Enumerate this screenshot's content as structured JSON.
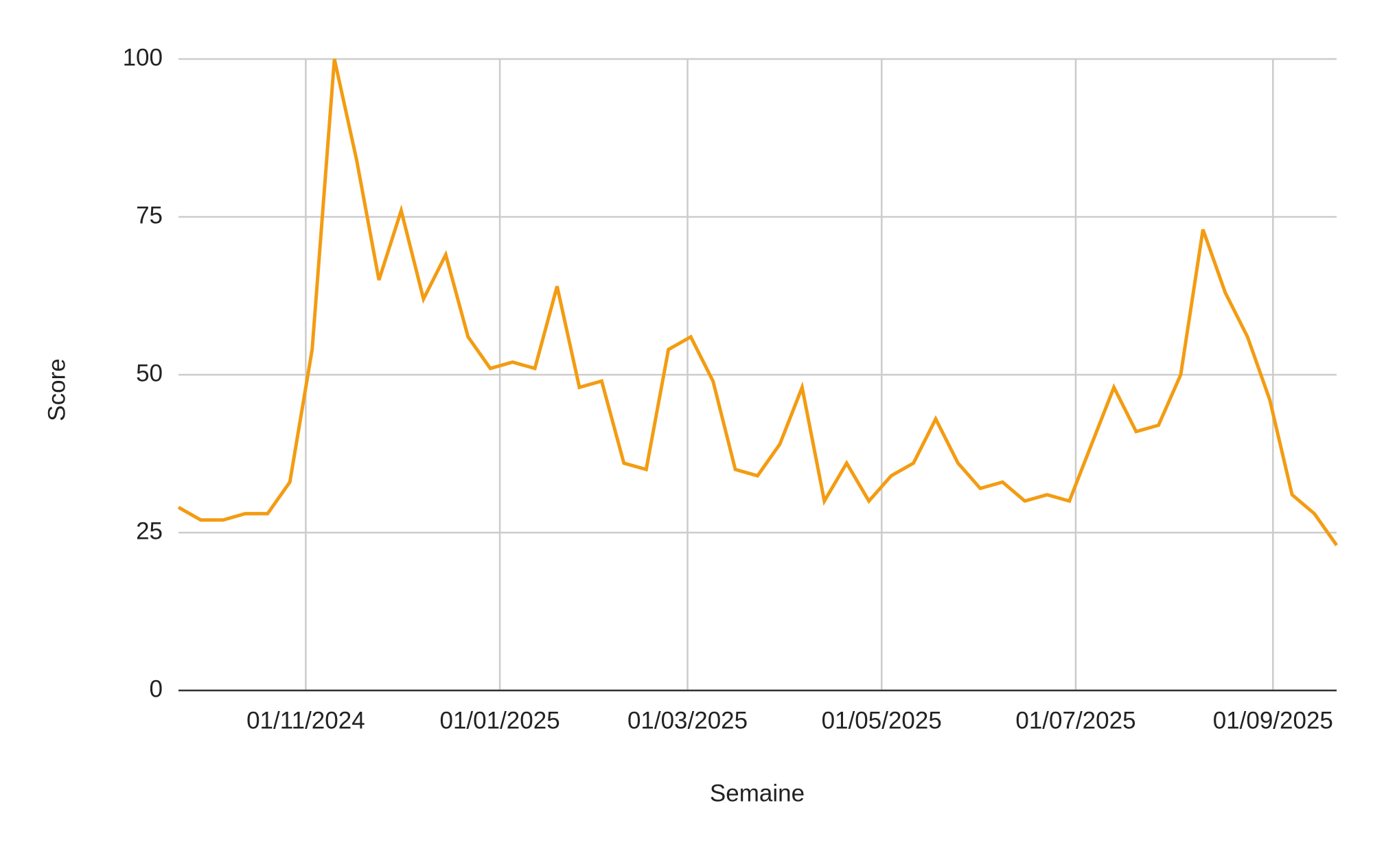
{
  "chart_data": {
    "type": "line",
    "xlabel": "Semaine",
    "ylabel": "Score",
    "x": [
      "22/09/2024",
      "29/09/2024",
      "06/10/2024",
      "13/10/2024",
      "20/10/2024",
      "27/10/2024",
      "03/11/2024",
      "10/11/2024",
      "17/11/2024",
      "24/11/2024",
      "01/12/2024",
      "08/12/2024",
      "15/12/2024",
      "22/12/2024",
      "29/12/2024",
      "05/01/2025",
      "12/01/2025",
      "19/01/2025",
      "26/01/2025",
      "02/02/2025",
      "09/02/2025",
      "16/02/2025",
      "23/02/2025",
      "02/03/2025",
      "09/03/2025",
      "16/03/2025",
      "23/03/2025",
      "30/03/2025",
      "06/04/2025",
      "13/04/2025",
      "20/04/2025",
      "27/04/2025",
      "04/05/2025",
      "11/05/2025",
      "18/05/2025",
      "25/05/2025",
      "01/06/2025",
      "08/06/2025",
      "15/06/2025",
      "22/06/2025",
      "29/06/2025",
      "06/07/2025",
      "13/07/2025",
      "20/07/2025",
      "27/07/2025",
      "03/08/2025",
      "10/08/2025",
      "17/08/2025",
      "24/08/2025",
      "31/08/2025",
      "07/09/2025",
      "14/09/2025",
      "21/09/2025"
    ],
    "values": [
      29,
      27,
      27,
      28,
      28,
      33,
      54,
      100,
      84,
      65,
      76,
      62,
      69,
      56,
      51,
      52,
      51,
      64,
      48,
      49,
      36,
      35,
      54,
      56,
      49,
      35,
      34,
      39,
      48,
      30,
      36,
      30,
      34,
      36,
      43,
      36,
      32,
      33,
      30,
      31,
      30,
      39,
      48,
      41,
      42,
      50,
      73,
      63,
      56,
      46,
      31,
      28,
      23
    ],
    "color": "#f39c12",
    "xlim": [
      "22/09/2024",
      "21/09/2025"
    ],
    "xticks": [
      "01/11/2024",
      "01/01/2025",
      "01/03/2025",
      "01/05/2025",
      "01/07/2025",
      "01/09/2025"
    ],
    "ylim": [
      0,
      100
    ],
    "yticks": [
      0,
      25,
      50,
      75,
      100
    ],
    "grid": true
  }
}
